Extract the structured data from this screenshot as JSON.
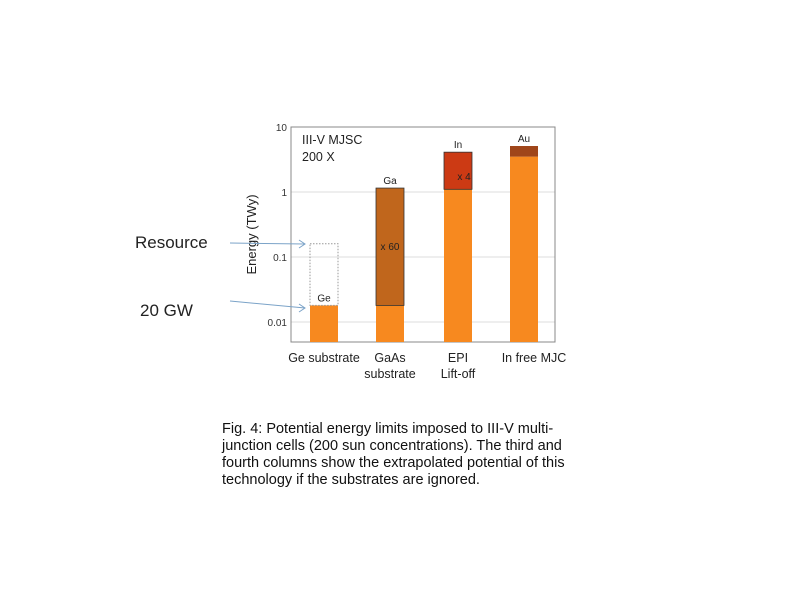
{
  "chart_data": {
    "type": "bar",
    "stacked": true,
    "yscale": "log",
    "ylim": [
      0.005,
      10
    ],
    "ylabel": "Energy (TWy)",
    "yticks": [
      0.01,
      0.1,
      1,
      10
    ],
    "ytick_labels": [
      "0.01",
      "0.1",
      "1",
      "10"
    ],
    "grid": true,
    "categories": [
      "Ge substrate",
      "GaAs substrate",
      "EPI Lift-off",
      "In free MJC"
    ],
    "category_lines": [
      [
        "Ge substrate"
      ],
      [
        "GaAs",
        "substrate"
      ],
      [
        "EPI",
        "Lift-off"
      ],
      [
        "In free MJC"
      ]
    ],
    "inset_text": [
      "III-V MJSC",
      "200 X"
    ],
    "bars": [
      {
        "base": 0.018,
        "top": 0.018,
        "top_label": "Ge",
        "factor_label": "",
        "resource": 0.16
      },
      {
        "base": 0.018,
        "top": 1.15,
        "top_label": "Ga",
        "factor_label": "x 60"
      },
      {
        "base": 1.1,
        "top": 4.1,
        "top_label": "In",
        "factor_label": "x 4"
      },
      {
        "base": 3.5,
        "top": 5.1,
        "top_label": "Au",
        "factor_label": ""
      }
    ],
    "colors": {
      "base": "#F7891F",
      "segments": [
        "#F7891F",
        "#C0661C",
        "#CC3A14",
        "#A0461A"
      ],
      "arrow": "#7BA3C8"
    },
    "annotations": [
      {
        "text": "Resource",
        "target": 0.16
      },
      {
        "text": "20 GW",
        "target": 0.018
      }
    ]
  },
  "caption": "Fig. 4: Potential energy limits imposed to III-V multi-junction cells (200 sun concentrations). The third and fourth columns show the extrapolated potential of this technology if the substrates are ignored."
}
